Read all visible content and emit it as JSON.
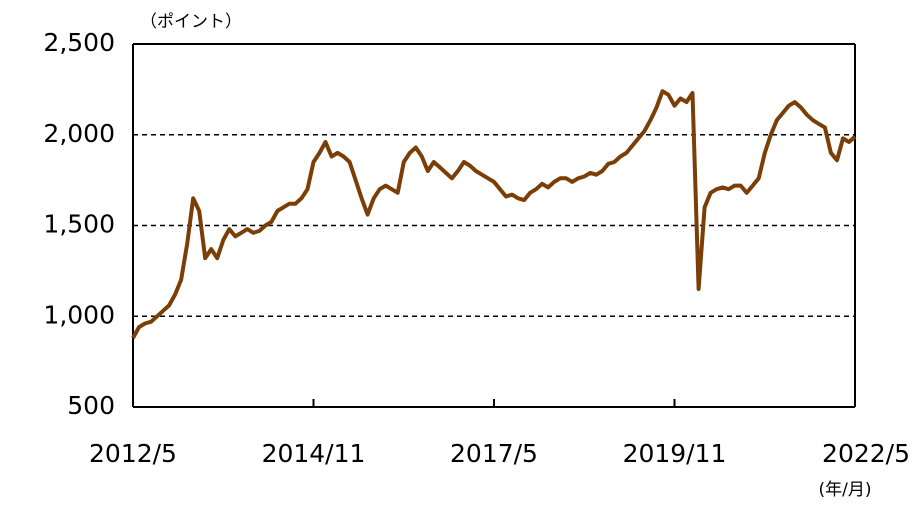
{
  "chart_data": {
    "type": "line",
    "y_unit_label": "（ポイント）",
    "x_unit_label": "(年/月)",
    "categories": [
      "2012/5",
      null,
      null,
      null,
      null,
      null,
      null,
      null,
      null,
      null,
      null,
      null,
      null,
      null,
      null,
      null,
      null,
      null,
      null,
      null,
      null,
      null,
      null,
      null,
      null,
      null,
      null,
      null,
      null,
      null,
      "2014/11",
      null,
      null,
      null,
      null,
      null,
      null,
      null,
      null,
      null,
      null,
      null,
      null,
      null,
      null,
      null,
      null,
      null,
      null,
      null,
      null,
      null,
      null,
      null,
      null,
      null,
      null,
      null,
      null,
      null,
      "2017/5",
      null,
      null,
      null,
      null,
      null,
      null,
      null,
      null,
      null,
      null,
      null,
      null,
      null,
      null,
      null,
      null,
      null,
      null,
      null,
      null,
      null,
      null,
      null,
      null,
      null,
      null,
      null,
      null,
      null,
      "2019/11",
      null,
      null,
      null,
      null,
      null,
      null,
      null,
      null,
      null,
      null,
      null,
      null,
      null,
      null,
      null,
      null,
      null,
      null,
      null,
      null,
      null,
      null,
      null,
      null,
      null,
      null,
      null,
      null,
      null,
      "2022/5"
    ],
    "series": [
      {
        "color": "#7a3e06",
        "values": [
          880,
          940,
          960,
          970,
          1000,
          1030,
          1060,
          1120,
          1200,
          1400,
          1650,
          1580,
          1320,
          1370,
          1320,
          1420,
          1480,
          1440,
          1460,
          1480,
          1460,
          1470,
          1500,
          1520,
          1580,
          1600,
          1620,
          1620,
          1650,
          1700,
          1850,
          1900,
          1960,
          1880,
          1900,
          1880,
          1850,
          1750,
          1650,
          1560,
          1650,
          1700,
          1720,
          1700,
          1680,
          1850,
          1900,
          1930,
          1880,
          1800,
          1850,
          1820,
          1790,
          1760,
          1800,
          1850,
          1830,
          1800,
          1780,
          1760,
          1740,
          1700,
          1660,
          1670,
          1650,
          1640,
          1680,
          1700,
          1730,
          1710,
          1740,
          1760,
          1760,
          1740,
          1760,
          1770,
          1790,
          1780,
          1800,
          1840,
          1850,
          1880,
          1900,
          1940,
          1980,
          2020,
          2080,
          2150,
          2240,
          2220,
          2160,
          2200,
          2180,
          2230,
          1150,
          1600,
          1680,
          1700,
          1710,
          1700,
          1720,
          1720,
          1680,
          1720,
          1760,
          1900,
          2000,
          2080,
          2120,
          2160,
          2180,
          2150,
          2110,
          2080,
          2060,
          2040,
          1900,
          1860,
          1980,
          1960,
          1990
        ]
      }
    ],
    "ylim": [
      500,
      2500
    ],
    "yticks": [
      500,
      {
        "value": 1000,
        "label": "1,000"
      },
      {
        "value": 1500,
        "label": "1,500"
      },
      {
        "value": 2000,
        "label": "2,000"
      },
      {
        "value": 2500,
        "label": "2,500"
      }
    ],
    "grid": true
  }
}
